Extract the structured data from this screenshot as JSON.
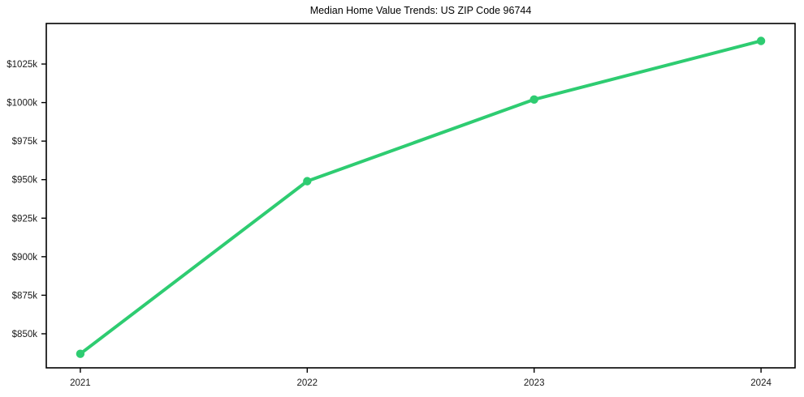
{
  "figure": {
    "background": "#ffffff"
  },
  "chart_data": {
    "type": "line",
    "title": "Median Home Value Trends: US ZIP Code 96744",
    "x": [
      2021,
      2022,
      2023,
      2024
    ],
    "x_labels": [
      "2021",
      "2022",
      "2023",
      "2024"
    ],
    "series": [
      {
        "name": "median-home-value",
        "values": [
          837,
          949,
          1002,
          1040
        ],
        "color": "#2ecc71",
        "marker": "circle"
      }
    ],
    "values_unit": "USD thousands",
    "xlabel": "",
    "ylabel": "",
    "ytick_values": [
      850,
      875,
      900,
      925,
      950,
      975,
      1000,
      1025
    ],
    "ytick_labels": [
      "$850k",
      "$875k",
      "$900k",
      "$925k",
      "$950k",
      "$975k",
      "$1000k",
      "$1025k"
    ],
    "ylim": [
      827.9,
      1051.3
    ],
    "xlim": [
      2020.85,
      2024.15
    ],
    "grid": false,
    "legend": "none",
    "axis_color": "#000000",
    "tick_label_color": "#1a1a1a"
  }
}
